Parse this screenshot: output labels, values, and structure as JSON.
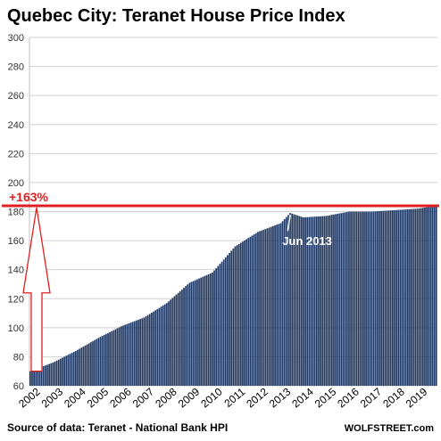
{
  "chart_data": {
    "type": "bar",
    "title": "Quebec City: Teranet House Price Index",
    "source": "Source of data: Teranet - National Bank HPI",
    "watermark": "WOLFSTREET.com",
    "ylim": [
      60,
      300
    ],
    "y_ticks": [
      60,
      80,
      100,
      120,
      140,
      160,
      180,
      200,
      220,
      240,
      260,
      280,
      300
    ],
    "x_tick_labels": [
      "2002",
      "2003",
      "2004",
      "2005",
      "2006",
      "2007",
      "2008",
      "2009",
      "2010",
      "2011",
      "2012",
      "2013",
      "2014",
      "2015",
      "2016",
      "2017",
      "2018",
      "2019"
    ],
    "start_month": "2002-01",
    "grid": true,
    "bar_color": "#1f3864",
    "annotations": {
      "growth_label": "+163%",
      "growth_color": "#e02020",
      "reference_level": 184,
      "peak_label": "Jun 2013",
      "peak_color": "#ffffff"
    },
    "yearly_anchors": [
      {
        "month": "2002-01",
        "value": 70
      },
      {
        "month": "2003-01",
        "value": 76
      },
      {
        "month": "2004-01",
        "value": 84
      },
      {
        "month": "2005-01",
        "value": 93
      },
      {
        "month": "2006-01",
        "value": 101
      },
      {
        "month": "2007-01",
        "value": 107
      },
      {
        "month": "2008-01",
        "value": 117
      },
      {
        "month": "2009-01",
        "value": 131
      },
      {
        "month": "2010-01",
        "value": 138
      },
      {
        "month": "2011-01",
        "value": 156
      },
      {
        "month": "2012-01",
        "value": 166
      },
      {
        "month": "2013-01",
        "value": 172
      },
      {
        "month": "2013-06",
        "value": 179
      },
      {
        "month": "2014-01",
        "value": 176
      },
      {
        "month": "2015-01",
        "value": 177
      },
      {
        "month": "2016-01",
        "value": 180
      },
      {
        "month": "2017-01",
        "value": 180
      },
      {
        "month": "2018-01",
        "value": 181
      },
      {
        "month": "2019-01",
        "value": 182
      },
      {
        "month": "2019-11",
        "value": 184
      }
    ]
  }
}
